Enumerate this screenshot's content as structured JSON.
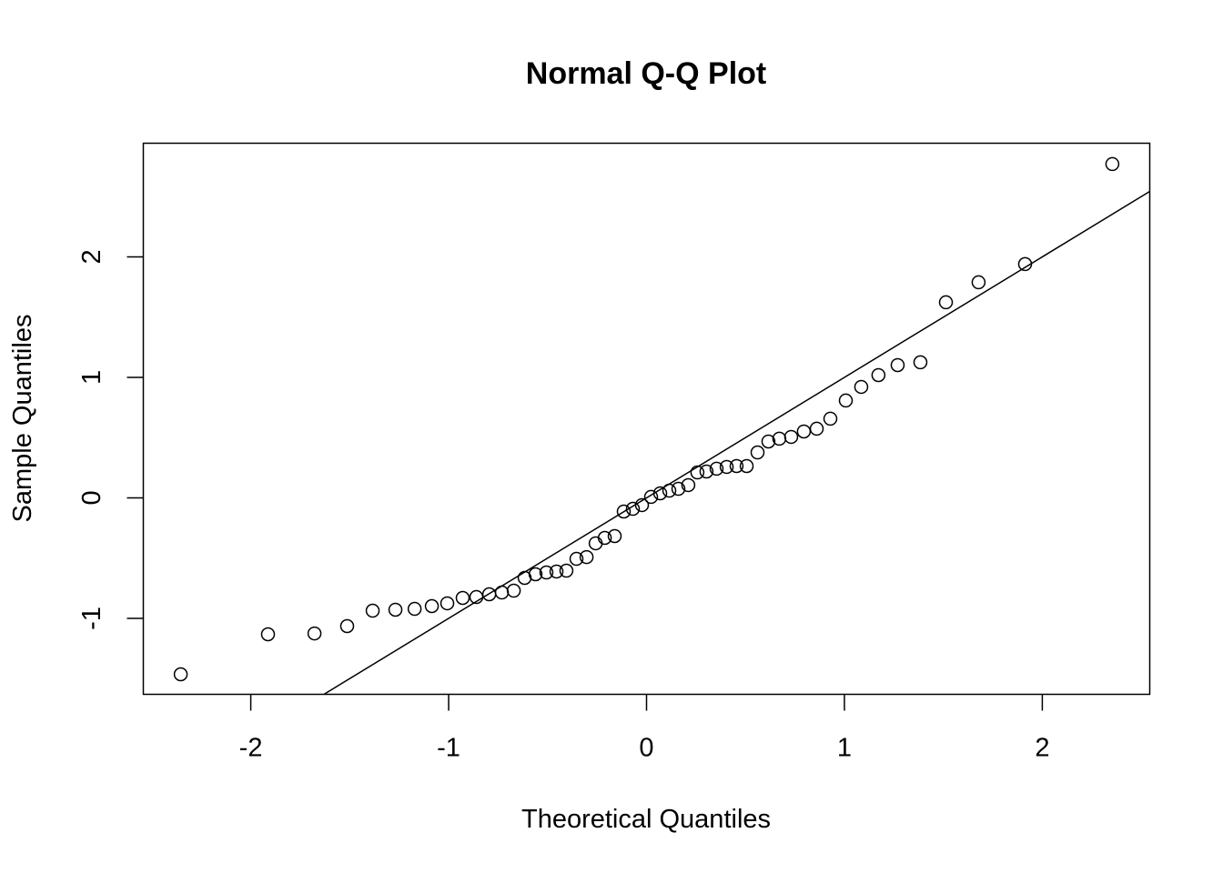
{
  "chart_data": {
    "type": "scatter",
    "title": "Normal Q-Q Plot",
    "xlabel": "Theoretical Quantiles",
    "ylabel": "Sample Quantiles",
    "xlim": [
      -2.543,
      2.543
    ],
    "ylim": [
      -1.63,
      2.943
    ],
    "xticks": [
      -2,
      -1,
      0,
      1,
      2
    ],
    "xtick_labels": [
      "-2",
      "-1",
      "0",
      "1",
      "2"
    ],
    "yticks": [
      -1,
      0,
      1,
      2
    ],
    "ytick_labels": [
      "-1",
      "0",
      "1",
      "2"
    ],
    "grid": false,
    "reference_line": {
      "intercept": 0.0,
      "slope": 1.0
    },
    "x": [
      -2.354,
      -1.913,
      -1.678,
      -1.513,
      -1.384,
      -1.269,
      -1.172,
      -1.085,
      -1.007,
      -0.929,
      -0.86,
      -0.795,
      -0.731,
      -0.671,
      -0.616,
      -0.561,
      -0.506,
      -0.455,
      -0.405,
      -0.354,
      -0.303,
      -0.257,
      -0.211,
      -0.161,
      -0.115,
      -0.069,
      -0.023,
      0.023,
      0.069,
      0.115,
      0.161,
      0.211,
      0.257,
      0.303,
      0.354,
      0.405,
      0.455,
      0.506,
      0.561,
      0.616,
      0.671,
      0.731,
      0.795,
      0.86,
      0.929,
      1.007,
      1.085,
      1.172,
      1.269,
      1.384,
      1.513,
      1.678,
      1.913,
      2.354
    ],
    "y": [
      -1.464,
      -1.132,
      -1.125,
      -1.064,
      -0.936,
      -0.928,
      -0.921,
      -0.898,
      -0.875,
      -0.83,
      -0.823,
      -0.8,
      -0.785,
      -0.77,
      -0.664,
      -0.634,
      -0.619,
      -0.611,
      -0.604,
      -0.506,
      -0.491,
      -0.377,
      -0.332,
      -0.317,
      -0.113,
      -0.091,
      -0.06,
      0.008,
      0.038,
      0.06,
      0.075,
      0.106,
      0.211,
      0.219,
      0.242,
      0.257,
      0.264,
      0.264,
      0.377,
      0.468,
      0.491,
      0.506,
      0.551,
      0.574,
      0.657,
      0.808,
      0.921,
      1.019,
      1.102,
      1.125,
      1.623,
      1.789,
      1.94,
      2.77
    ]
  }
}
